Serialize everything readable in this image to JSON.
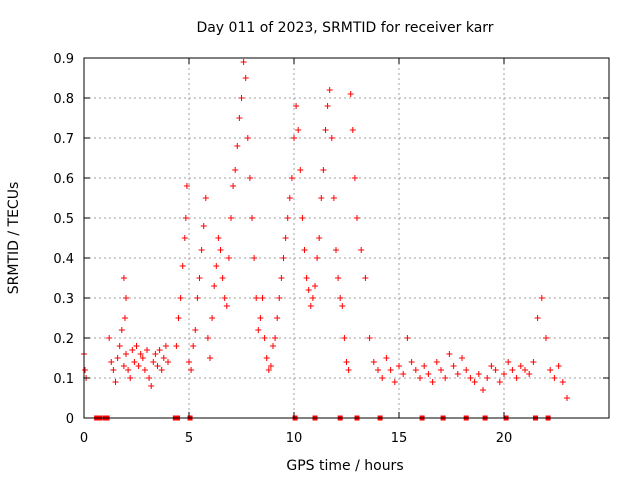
{
  "chart_data": {
    "type": "scatter",
    "title": "Day 011 of 2023, SRMTID for receiver karr",
    "xlabel": "GPS time / hours",
    "ylabel": "SRMTID / TECUs",
    "xlim": [
      0,
      25
    ],
    "ylim": [
      0,
      0.9
    ],
    "xticks": [
      0,
      5,
      10,
      15,
      20
    ],
    "yticks": [
      0,
      0.1,
      0.2,
      0.3,
      0.4,
      0.5,
      0.6,
      0.7,
      0.8,
      0.9
    ],
    "x_tick_labels": [
      "0",
      "5",
      "10",
      "15",
      "20"
    ],
    "y_tick_labels": [
      "0",
      "0.1",
      "0.2",
      "0.3",
      "0.4",
      "0.5",
      "0.6",
      "0.7",
      "0.8",
      "0.9"
    ],
    "grid": true,
    "marker": "+",
    "color": "#ff0000",
    "series": [
      {
        "name": "SRMTID",
        "marker": "+",
        "x": [
          0.0,
          0.05,
          0.1,
          1.2,
          1.3,
          1.4,
          1.5,
          1.6,
          1.7,
          1.8,
          1.9,
          2.0,
          2.1,
          2.2,
          2.3,
          2.4,
          2.5,
          2.6,
          2.7,
          2.8,
          2.9,
          3.0,
          3.1,
          3.2,
          3.3,
          3.4,
          3.5,
          3.6,
          3.7,
          3.8,
          3.9,
          4.0,
          1.9,
          2.0,
          1.95,
          4.4,
          4.5,
          4.6,
          4.7,
          4.8,
          4.85,
          4.9,
          5.0,
          5.1,
          5.2,
          5.3,
          5.4,
          5.5,
          5.6,
          5.7,
          5.8,
          5.9,
          6.0,
          6.1,
          6.2,
          6.3,
          6.4,
          6.5,
          6.6,
          6.7,
          6.8,
          6.9,
          7.0,
          7.1,
          7.2,
          7.3,
          7.4,
          7.5,
          7.6,
          7.7,
          7.8,
          7.9,
          8.0,
          8.1,
          8.2,
          8.3,
          8.4,
          8.5,
          8.6,
          8.7,
          8.8,
          8.9,
          9.0,
          9.1,
          9.2,
          9.3,
          9.4,
          9.5,
          9.6,
          9.7,
          9.8,
          9.9,
          10.0,
          10.1,
          10.2,
          10.3,
          10.4,
          10.5,
          10.6,
          10.7,
          10.8,
          10.9,
          11.0,
          11.1,
          11.2,
          11.3,
          11.4,
          11.5,
          11.6,
          11.7,
          11.8,
          11.9,
          12.0,
          12.1,
          12.2,
          12.3,
          12.4,
          12.5,
          12.6,
          12.7,
          12.8,
          12.9,
          13.0,
          13.2,
          13.4,
          13.6,
          13.8,
          14.0,
          14.2,
          14.4,
          14.6,
          14.8,
          15.0,
          15.2,
          15.4,
          15.6,
          15.8,
          16.0,
          16.2,
          16.4,
          16.6,
          16.8,
          17.0,
          17.2,
          17.4,
          17.6,
          17.8,
          18.0,
          18.2,
          18.4,
          18.6,
          18.8,
          19.0,
          19.2,
          19.4,
          19.6,
          19.8,
          20.0,
          20.2,
          20.4,
          20.6,
          20.8,
          21.0,
          21.2,
          21.4,
          21.6,
          21.8,
          22.0,
          22.2,
          22.4,
          22.6,
          22.8,
          23.0
        ],
        "y": [
          0.16,
          0.12,
          0.1,
          0.2,
          0.14,
          0.12,
          0.09,
          0.15,
          0.18,
          0.22,
          0.13,
          0.16,
          0.12,
          0.1,
          0.17,
          0.14,
          0.18,
          0.13,
          0.16,
          0.15,
          0.12,
          0.17,
          0.1,
          0.08,
          0.14,
          0.16,
          0.13,
          0.17,
          0.12,
          0.15,
          0.18,
          0.14,
          0.35,
          0.3,
          0.25,
          0.18,
          0.25,
          0.3,
          0.38,
          0.45,
          0.5,
          0.58,
          0.14,
          0.12,
          0.18,
          0.22,
          0.3,
          0.35,
          0.42,
          0.48,
          0.55,
          0.2,
          0.15,
          0.25,
          0.33,
          0.38,
          0.45,
          0.42,
          0.35,
          0.3,
          0.28,
          0.4,
          0.5,
          0.58,
          0.62,
          0.68,
          0.75,
          0.8,
          0.89,
          0.85,
          0.7,
          0.6,
          0.5,
          0.4,
          0.3,
          0.22,
          0.25,
          0.3,
          0.2,
          0.15,
          0.12,
          0.13,
          0.18,
          0.2,
          0.25,
          0.3,
          0.35,
          0.4,
          0.45,
          0.5,
          0.55,
          0.6,
          0.7,
          0.78,
          0.72,
          0.62,
          0.5,
          0.42,
          0.35,
          0.32,
          0.28,
          0.3,
          0.33,
          0.4,
          0.45,
          0.55,
          0.62,
          0.72,
          0.78,
          0.82,
          0.7,
          0.55,
          0.42,
          0.35,
          0.3,
          0.28,
          0.2,
          0.14,
          0.12,
          0.81,
          0.72,
          0.6,
          0.5,
          0.42,
          0.35,
          0.2,
          0.14,
          0.12,
          0.1,
          0.15,
          0.12,
          0.09,
          0.13,
          0.11,
          0.2,
          0.14,
          0.12,
          0.1,
          0.13,
          0.11,
          0.09,
          0.14,
          0.12,
          0.1,
          0.16,
          0.13,
          0.11,
          0.15,
          0.12,
          0.1,
          0.09,
          0.11,
          0.07,
          0.1,
          0.13,
          0.12,
          0.09,
          0.11,
          0.14,
          0.12,
          0.1,
          0.13,
          0.12,
          0.11,
          0.14,
          0.25,
          0.3,
          0.2,
          0.12,
          0.1,
          0.13,
          0.09,
          0.05
        ]
      }
    ],
    "markers_at_zero_x": [
      0.6,
      0.75,
      1.0,
      1.1,
      4.35,
      4.45,
      5.05,
      10.05,
      11.0,
      12.2,
      13.0,
      14.1,
      16.1,
      17.1,
      18.2,
      19.1,
      20.1,
      21.5,
      22.1
    ]
  }
}
